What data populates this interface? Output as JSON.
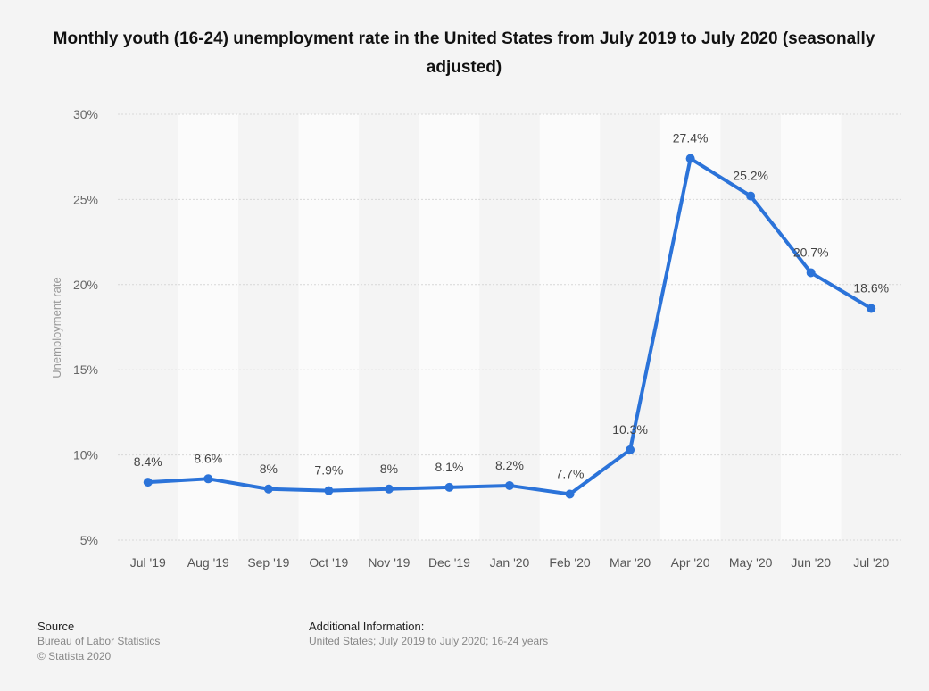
{
  "chart_data": {
    "type": "line",
    "title": "Monthly youth (16-24) unemployment rate in the United States from July 2019 to July 2020 (seasonally adjusted)",
    "ylabel": "Unemployment rate",
    "xlabel": "",
    "categories": [
      "Jul '19",
      "Aug '19",
      "Sep '19",
      "Oct '19",
      "Nov '19",
      "Dec '19",
      "Jan '20",
      "Feb '20",
      "Mar '20",
      "Apr '20",
      "May '20",
      "Jun '20",
      "Jul '20"
    ],
    "values": [
      8.4,
      8.6,
      8,
      7.9,
      8,
      8.1,
      8.2,
      7.7,
      10.3,
      27.4,
      25.2,
      20.7,
      18.6
    ],
    "value_labels": [
      "8.4%",
      "8.6%",
      "8%",
      "7.9%",
      "8%",
      "8.1%",
      "8.2%",
      "7.7%",
      "10.3%",
      "27.4%",
      "25.2%",
      "20.7%",
      "18.6%"
    ],
    "ylim": [
      5,
      30
    ],
    "yticks": [
      5,
      10,
      15,
      20,
      25,
      30
    ],
    "ytick_labels": [
      "5%",
      "10%",
      "15%",
      "20%",
      "25%",
      "30%"
    ],
    "grid": true,
    "line_color": "#2b73d9"
  },
  "footer": {
    "source_heading": "Source",
    "source_line1": "Bureau of Labor Statistics",
    "source_line2": "© Statista 2020",
    "info_heading": "Additional Information:",
    "info_text": "United States; July 2019 to July 2020; 16-24 years"
  }
}
